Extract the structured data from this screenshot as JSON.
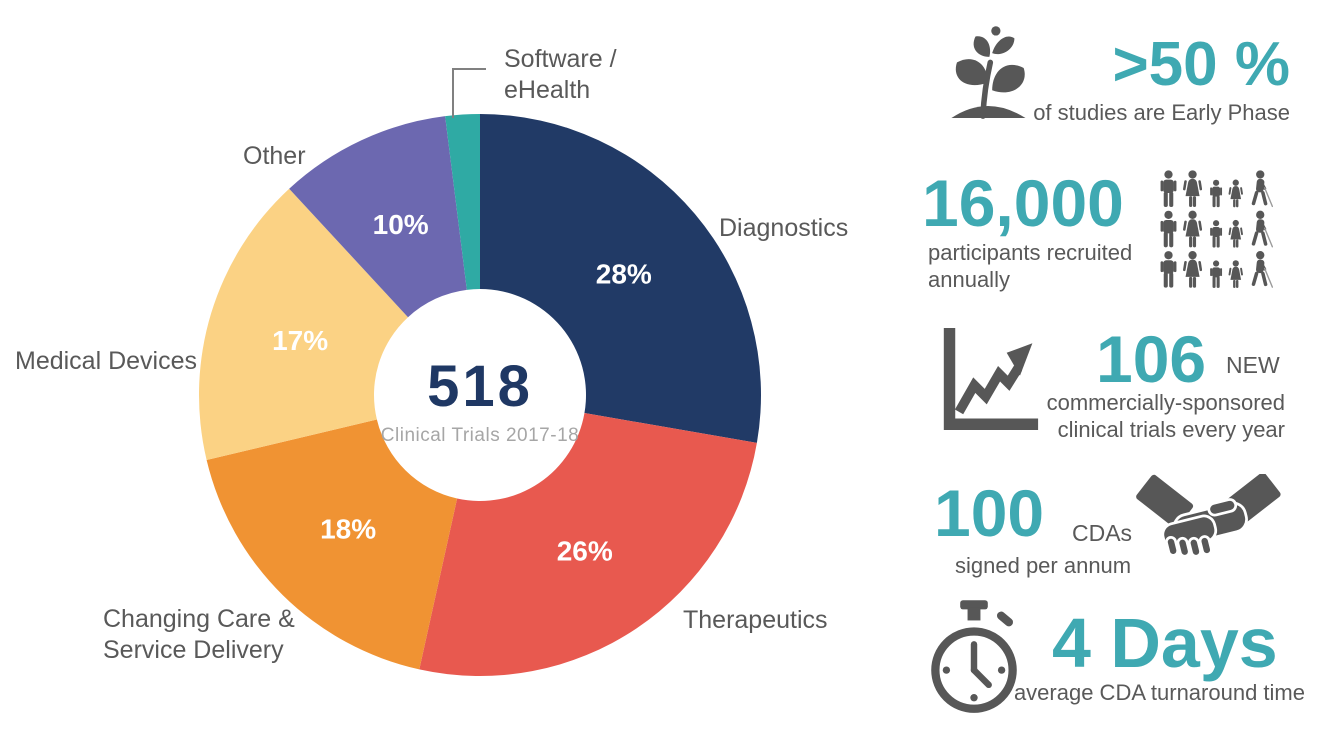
{
  "palette": {
    "teal_text": "#3FA9B2",
    "icon_gray": "#575757",
    "text_gray": "#595959",
    "light_gray": "#A6A6A6",
    "navy": "#1F3864"
  },
  "chart_data": {
    "type": "pie",
    "style": "donut",
    "center_value": "518",
    "center_caption": "Clinical Trials 2017-18",
    "legend_position": "around-slices",
    "slices": [
      {
        "label": "Diagnostics",
        "value": 28,
        "pct_label": "28%",
        "color": "#213A66"
      },
      {
        "label": "Therapeutics",
        "value": 26,
        "pct_label": "26%",
        "color": "#E8594F"
      },
      {
        "label": "Changing Care & Service Delivery",
        "value": 18,
        "pct_label": "18%",
        "color": "#F09333"
      },
      {
        "label": "Medical Devices",
        "value": 17,
        "pct_label": "17%",
        "color": "#FBD284"
      },
      {
        "label": "Other",
        "value": 10,
        "pct_label": "10%",
        "color": "#6C68B0"
      },
      {
        "label": "Software / eHealth",
        "value": 2,
        "pct_label": "",
        "color": "#2FAAA4"
      }
    ]
  },
  "stats": [
    {
      "icon": "seedling-icon",
      "value": ">50 %",
      "caption": "of studies are Early Phase"
    },
    {
      "icon": "participants-pictogram",
      "value": "16,000",
      "caption": "participants recruited annually"
    },
    {
      "icon": "growth-chart-icon",
      "value": "106",
      "suffix": "NEW",
      "caption": "commercially-sponsored clinical trials every year"
    },
    {
      "icon": "handshake-icon",
      "value": "100",
      "suffix": "CDAs",
      "caption": "signed per annum"
    },
    {
      "icon": "stopwatch-icon",
      "value": "4 Days",
      "caption": "average CDA turnaround time"
    }
  ]
}
